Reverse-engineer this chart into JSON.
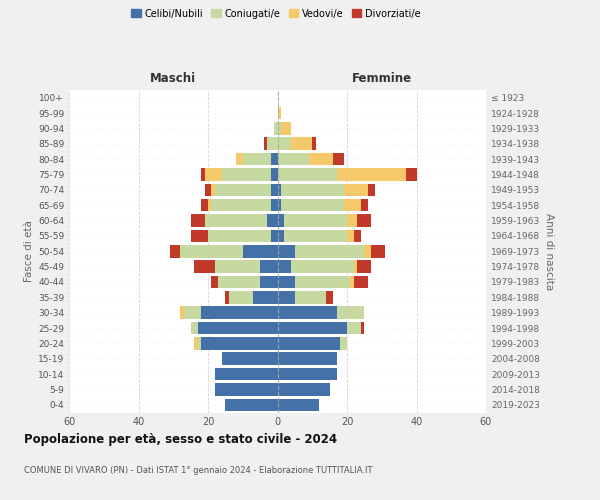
{
  "age_groups": [
    "0-4",
    "5-9",
    "10-14",
    "15-19",
    "20-24",
    "25-29",
    "30-34",
    "35-39",
    "40-44",
    "45-49",
    "50-54",
    "55-59",
    "60-64",
    "65-69",
    "70-74",
    "75-79",
    "80-84",
    "85-89",
    "90-94",
    "95-99",
    "100+"
  ],
  "birth_years": [
    "2019-2023",
    "2014-2018",
    "2009-2013",
    "2004-2008",
    "1999-2003",
    "1994-1998",
    "1989-1993",
    "1984-1988",
    "1979-1983",
    "1974-1978",
    "1969-1973",
    "1964-1968",
    "1959-1963",
    "1954-1958",
    "1949-1953",
    "1944-1948",
    "1939-1943",
    "1934-1938",
    "1929-1933",
    "1924-1928",
    "≤ 1923"
  ],
  "maschi": {
    "celibi": [
      15,
      18,
      18,
      16,
      22,
      23,
      22,
      7,
      5,
      5,
      10,
      2,
      3,
      2,
      2,
      2,
      2,
      0,
      0,
      0,
      0
    ],
    "coniugati": [
      0,
      0,
      0,
      0,
      1,
      2,
      5,
      7,
      12,
      13,
      18,
      18,
      18,
      17,
      16,
      14,
      8,
      3,
      1,
      0,
      0
    ],
    "vedovi": [
      0,
      0,
      0,
      0,
      1,
      0,
      1,
      0,
      0,
      0,
      0,
      0,
      0,
      1,
      1,
      5,
      2,
      0,
      0,
      0,
      0
    ],
    "divorziati": [
      0,
      0,
      0,
      0,
      0,
      0,
      0,
      1,
      2,
      6,
      3,
      5,
      4,
      2,
      2,
      1,
      0,
      1,
      0,
      0,
      0
    ]
  },
  "femmine": {
    "nubili": [
      12,
      15,
      17,
      17,
      18,
      20,
      17,
      5,
      5,
      4,
      5,
      2,
      2,
      1,
      1,
      0,
      0,
      0,
      0,
      0,
      0
    ],
    "coniugate": [
      0,
      0,
      0,
      0,
      2,
      4,
      8,
      9,
      16,
      18,
      20,
      18,
      18,
      18,
      18,
      17,
      9,
      4,
      1,
      0,
      0
    ],
    "vedove": [
      0,
      0,
      0,
      0,
      0,
      0,
      0,
      0,
      1,
      1,
      2,
      2,
      3,
      5,
      7,
      20,
      7,
      6,
      3,
      1,
      0
    ],
    "divorziate": [
      0,
      0,
      0,
      0,
      0,
      1,
      0,
      2,
      4,
      4,
      4,
      2,
      4,
      2,
      2,
      3,
      3,
      1,
      0,
      0,
      0
    ]
  },
  "colors": {
    "celibi": "#4472a8",
    "coniugati": "#c5d9a0",
    "vedovi": "#f5c96a",
    "divorziati": "#c0392b"
  },
  "title": "Popolazione per età, sesso e stato civile - 2024",
  "subtitle": "COMUNE DI VIVARO (PN) - Dati ISTAT 1° gennaio 2024 - Elaborazione TUTTITALIA.IT",
  "xlabel_left": "Maschi",
  "xlabel_right": "Femmine",
  "ylabel_left": "Fasce di età",
  "ylabel_right": "Anni di nascita",
  "xlim": 60,
  "legend_labels": [
    "Celibi/Nubili",
    "Coniugati/e",
    "Vedovi/e",
    "Divorziati/e"
  ],
  "bg_color": "#f0f0f0",
  "plot_bg_color": "#ffffff",
  "grid_color": "#cccccc"
}
